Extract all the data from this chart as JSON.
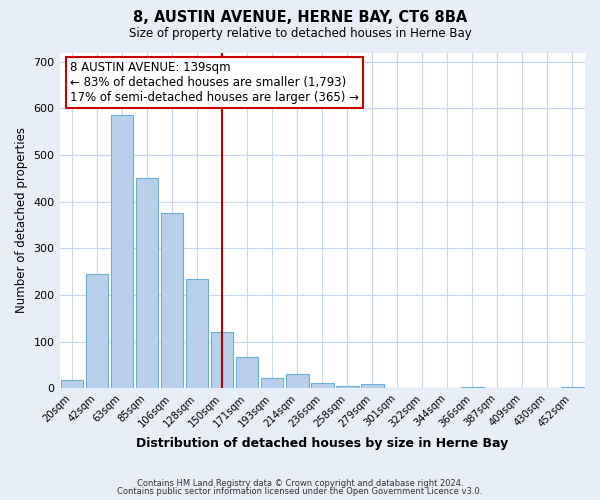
{
  "title": "8, AUSTIN AVENUE, HERNE BAY, CT6 8BA",
  "subtitle": "Size of property relative to detached houses in Herne Bay",
  "xlabel": "Distribution of detached houses by size in Herne Bay",
  "ylabel": "Number of detached properties",
  "bar_labels": [
    "20sqm",
    "42sqm",
    "63sqm",
    "85sqm",
    "106sqm",
    "128sqm",
    "150sqm",
    "171sqm",
    "193sqm",
    "214sqm",
    "236sqm",
    "258sqm",
    "279sqm",
    "301sqm",
    "322sqm",
    "344sqm",
    "366sqm",
    "387sqm",
    "409sqm",
    "430sqm",
    "452sqm"
  ],
  "bar_values": [
    18,
    245,
    585,
    450,
    375,
    235,
    120,
    67,
    22,
    30,
    12,
    5,
    10,
    0,
    0,
    0,
    3,
    0,
    0,
    0,
    2
  ],
  "bar_color": "#b8d0eb",
  "bar_edge_color": "#6baed6",
  "ylim": [
    0,
    720
  ],
  "yticks": [
    0,
    100,
    200,
    300,
    400,
    500,
    600,
    700
  ],
  "property_label": "8 AUSTIN AVENUE: 139sqm",
  "annotation_line1": "← 83% of detached houses are smaller (1,793)",
  "annotation_line2": "17% of semi-detached houses are larger (365) →",
  "vline_color": "#bb0000",
  "annotation_border_color": "#cc0000",
  "footer1": "Contains HM Land Registry data © Crown copyright and database right 2024.",
  "footer2": "Contains public sector information licensed under the Open Government Licence v3.0.",
  "background_color": "#e8eef8",
  "plot_background": "#ffffff",
  "grid_color": "#c8d8ec"
}
